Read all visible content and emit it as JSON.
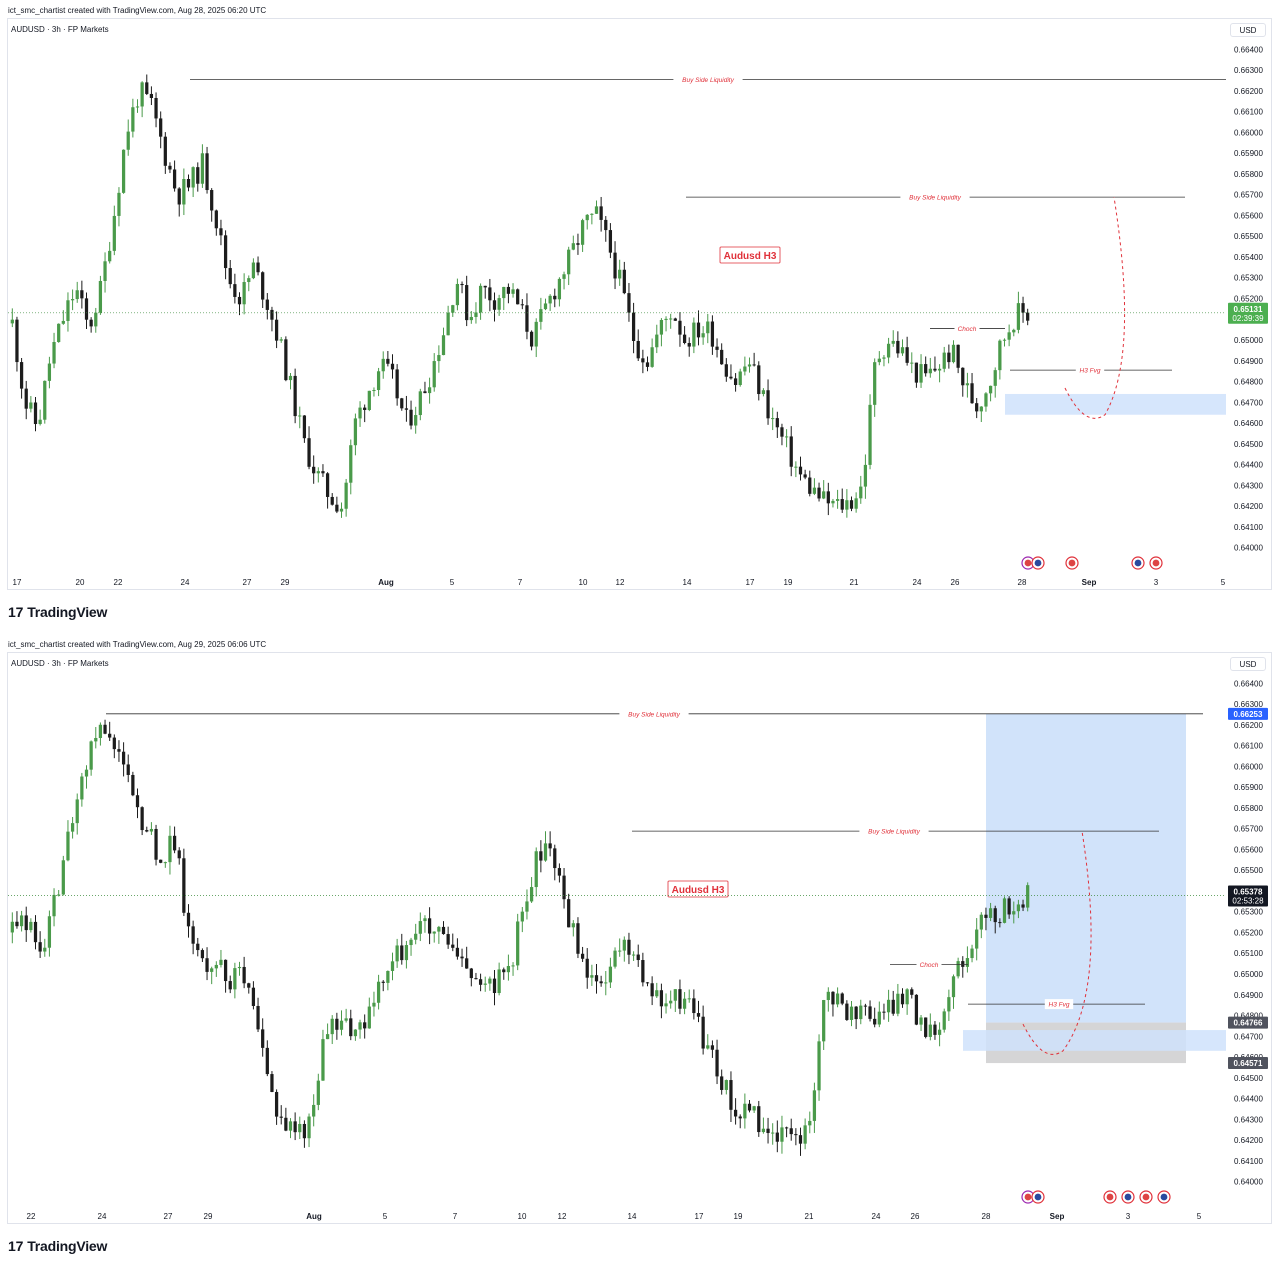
{
  "footer_brand": "TradingView",
  "footer_mark": "17",
  "currency_button": "USD",
  "colors": {
    "up": "#4a9a4a",
    "down": "#1c1c1c",
    "accent": "#e0313a",
    "zone": "#cfe2fb",
    "grid": "#f0f3fa"
  },
  "icons": [
    "replay-icon",
    "flag-icon",
    "event-icon"
  ],
  "chart_data": [
    {
      "type": "candlestick",
      "credit": "ict_smc_chartist created with TradingView.com, Aug 28, 2025 06:20 UTC",
      "symbol": "AUDUSD · 3h · FP Markets",
      "price_ticks": [
        "0.66400",
        "0.66300",
        "0.66200",
        "0.66100",
        "0.66000",
        "0.65900",
        "0.65800",
        "0.65700",
        "0.65600",
        "0.65500",
        "0.65400",
        "0.65300",
        "0.65200",
        "0.65100",
        "0.65000",
        "0.64900",
        "0.64800",
        "0.64700",
        "0.64600",
        "0.64500",
        "0.64400",
        "0.64300",
        "0.64200",
        "0.64100",
        "0.64000"
      ],
      "ylim": [
        0.6395,
        0.6644
      ],
      "date_ticks": [
        "17",
        "20",
        "22",
        "24",
        "27",
        "29",
        "Aug",
        "5",
        "7",
        "10",
        "12",
        "14",
        "17",
        "19",
        "21",
        "24",
        "26",
        "28",
        "Sep",
        "3",
        "5"
      ],
      "last_price": "0.65131",
      "countdown": "02:39:39",
      "last_price_value": 0.65131,
      "title_label": "Audusd H3",
      "levels": [
        {
          "label": "Buy Side Liquidity",
          "price": 0.66255
        },
        {
          "label": "Buy Side Liquidity",
          "price": 0.65688
        },
        {
          "label": "Choch",
          "price": 0.65055
        },
        {
          "label": "H3 Fvg",
          "price": 0.64855
        }
      ],
      "fvg_zone": [
        0.6464,
        0.6474
      ],
      "path": [
        0.6508,
        0.647,
        0.6458,
        0.6492,
        0.651,
        0.6525,
        0.6505,
        0.6525,
        0.656,
        0.66,
        0.662,
        0.6612,
        0.659,
        0.657,
        0.6575,
        0.6585,
        0.656,
        0.653,
        0.652,
        0.6535,
        0.652,
        0.65,
        0.6475,
        0.645,
        0.6435,
        0.6425,
        0.642,
        0.646,
        0.6475,
        0.6488,
        0.648,
        0.646,
        0.647,
        0.6485,
        0.6505,
        0.653,
        0.651,
        0.6525,
        0.652,
        0.6525,
        0.6515,
        0.65,
        0.6515,
        0.6528,
        0.654,
        0.6555,
        0.656,
        0.6545,
        0.6525,
        0.65,
        0.649,
        0.6505,
        0.6515,
        0.65,
        0.6505,
        0.6505,
        0.649,
        0.648,
        0.649,
        0.6475,
        0.646,
        0.6448,
        0.6435,
        0.6428,
        0.6422,
        0.642,
        0.6422,
        0.643,
        0.649,
        0.65,
        0.6495,
        0.6485,
        0.6482,
        0.6488,
        0.6495,
        0.6478,
        0.6468,
        0.648,
        0.65,
        0.6512,
        0.6513
      ]
    },
    {
      "type": "candlestick",
      "credit": "ict_smc_chartist created with TradingView.com, Aug 29, 2025 06:06 UTC",
      "symbol": "AUDUSD · 3h · FP Markets",
      "price_ticks": [
        "0.66400",
        "0.66300",
        "0.66200",
        "0.66100",
        "0.66000",
        "0.65900",
        "0.65800",
        "0.65700",
        "0.65600",
        "0.65500",
        "0.65400",
        "0.65300",
        "0.65200",
        "0.65100",
        "0.65000",
        "0.64900",
        "0.64800",
        "0.64700",
        "0.64600",
        "0.64500",
        "0.64400",
        "0.64300",
        "0.64200",
        "0.64100",
        "0.64000"
      ],
      "ylim": [
        0.6395,
        0.6644
      ],
      "date_ticks": [
        "22",
        "24",
        "27",
        "29",
        "Aug",
        "5",
        "7",
        "10",
        "12",
        "14",
        "17",
        "19",
        "21",
        "24",
        "26",
        "28",
        "Sep",
        "3",
        "5"
      ],
      "last_price": "0.65378",
      "countdown": "02:53:28",
      "last_price_value": 0.65378,
      "target_price": "0.66253",
      "entry_price": "0.64766",
      "stop_price": "0.64571",
      "title_label": "Audusd H3",
      "levels": [
        {
          "label": "Buy Side Liquidity",
          "price": 0.66253
        },
        {
          "label": "Buy Side Liquidity",
          "price": 0.65688
        },
        {
          "label": "Choch",
          "price": 0.65045
        },
        {
          "label": "H3 Fvg",
          "price": 0.64855
        }
      ],
      "fvg_zone": [
        0.6463,
        0.6473
      ],
      "path": [
        0.652,
        0.6525,
        0.651,
        0.653,
        0.656,
        0.659,
        0.6615,
        0.662,
        0.6605,
        0.658,
        0.657,
        0.6555,
        0.6565,
        0.652,
        0.6505,
        0.651,
        0.6495,
        0.65,
        0.6475,
        0.6445,
        0.643,
        0.6425,
        0.6428,
        0.6465,
        0.6478,
        0.647,
        0.6475,
        0.649,
        0.6505,
        0.6515,
        0.6525,
        0.652,
        0.6515,
        0.6505,
        0.65,
        0.649,
        0.65,
        0.651,
        0.654,
        0.656,
        0.6555,
        0.653,
        0.651,
        0.649,
        0.65,
        0.6515,
        0.651,
        0.6492,
        0.6485,
        0.6488,
        0.649,
        0.647,
        0.6455,
        0.644,
        0.6432,
        0.643,
        0.6422,
        0.642,
        0.642,
        0.6425,
        0.6488,
        0.6488,
        0.648,
        0.6485,
        0.6478,
        0.6485,
        0.6492,
        0.6478,
        0.6468,
        0.649,
        0.6505,
        0.6518,
        0.6528,
        0.653,
        0.6535,
        0.6538
      ]
    }
  ]
}
